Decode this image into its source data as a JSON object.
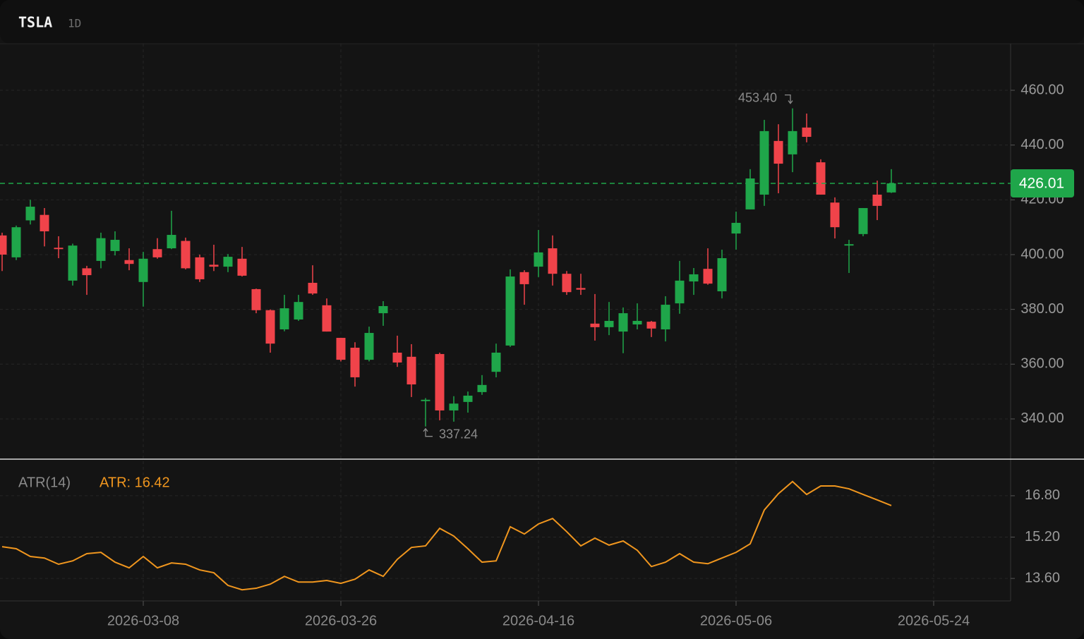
{
  "chart_data": [
    {
      "type": "candlestick",
      "title": "TSLA",
      "subtitle": "1D",
      "categories": [
        null,
        null,
        null,
        null,
        null,
        null,
        null,
        null,
        null,
        null,
        "2026-03-08",
        null,
        null,
        null,
        null,
        null,
        null,
        null,
        null,
        null,
        null,
        null,
        null,
        null,
        "2026-03-26",
        null,
        null,
        null,
        null,
        null,
        null,
        null,
        null,
        null,
        null,
        null,
        null,
        null,
        "2026-04-16",
        null,
        null,
        null,
        null,
        null,
        null,
        null,
        null,
        null,
        null,
        null,
        null,
        null,
        "2026-05-06",
        null,
        null,
        null,
        null,
        null,
        null,
        null,
        null,
        null,
        null,
        null,
        null,
        null,
        "2026-05-24"
      ],
      "open": [
        407,
        399,
        412.5,
        414.5,
        402.5,
        390.5,
        395,
        397.7,
        401.3,
        398,
        390,
        402,
        402.3,
        405,
        399,
        396.3,
        395.6,
        398.5,
        387.4,
        379.7,
        372.7,
        376.3,
        389.7,
        381.5,
        369.6,
        366,
        361.6,
        378.6,
        364.2,
        362.7,
        346.5,
        363.7,
        343.1,
        346.2,
        349.8,
        357.2,
        366.8,
        393.6,
        395.6,
        402.3,
        393,
        387.8,
        374.8,
        373.5,
        371.9,
        374.5,
        375.5,
        372.7,
        382.2,
        390.2,
        394.8,
        386.6,
        407.7,
        416.5,
        421.9,
        441.5,
        436.6,
        446.4,
        433.7,
        419,
        403.3,
        407.5,
        421.9,
        422.7,
        null,
        null,
        null
      ],
      "high": [
        408,
        410.6,
        420,
        417,
        406.7,
        404,
        395.9,
        408,
        408.5,
        402.3,
        401,
        406,
        416,
        406.2,
        400,
        403.6,
        400.2,
        402.8,
        387.6,
        380,
        385.3,
        385.3,
        396.1,
        384,
        369.6,
        368,
        373.7,
        383,
        370.4,
        367.3,
        347.6,
        364.2,
        348.3,
        350,
        356,
        367.5,
        394.6,
        394.3,
        409,
        407,
        394,
        393,
        385.6,
        382.7,
        380.7,
        382.2,
        375.8,
        384.8,
        397.7,
        395.1,
        402.3,
        401.8,
        415.7,
        431.2,
        449.2,
        447.6,
        453.4,
        451.5,
        434.8,
        420.9,
        405.4,
        417,
        427,
        431.2,
        null,
        null,
        null
      ],
      "low": [
        394,
        398,
        411,
        403,
        398.7,
        388.7,
        385.3,
        395,
        399.7,
        394.3,
        381,
        398.5,
        402,
        394.6,
        390,
        394,
        393.6,
        392,
        378.6,
        364.2,
        372,
        375.8,
        385.3,
        371.9,
        361,
        351.8,
        361,
        374,
        359,
        348,
        337.24,
        339.5,
        339,
        342.3,
        348.8,
        355.2,
        366.3,
        381.7,
        391.8,
        388.7,
        385.3,
        385.3,
        368.6,
        370.6,
        364,
        372.7,
        369.9,
        368.3,
        378.4,
        385.3,
        389,
        384,
        401.8,
        416.5,
        417.8,
        422.4,
        430.1,
        441,
        421.9,
        405.9,
        393.3,
        406.7,
        412.6,
        422.5,
        null,
        null,
        null
      ],
      "close": [
        400,
        410,
        417.5,
        408.5,
        402,
        403.3,
        392.5,
        406,
        405.4,
        396.6,
        398.5,
        399,
        407.2,
        395,
        391,
        395.6,
        399.2,
        392.3,
        379.7,
        367.5,
        380.4,
        382.7,
        385.8,
        371.9,
        361.6,
        355.2,
        371.4,
        381.2,
        360.6,
        352.6,
        347,
        343.1,
        345.6,
        348.5,
        352.4,
        364.2,
        392,
        389.2,
        400.8,
        393,
        386.3,
        387.2,
        373.5,
        375.8,
        378.6,
        375.8,
        373,
        381.7,
        390.5,
        392.8,
        389.4,
        398.7,
        411.6,
        427.8,
        445.1,
        433.2,
        445.1,
        443,
        421.9,
        410,
        403.8,
        417,
        417.8,
        426.01,
        null,
        null,
        null
      ],
      "up_color": "#1fa64a",
      "down_color": "#f0434a",
      "ylim": [
        325.57,
        477
      ],
      "yticks": [
        {
          "value": 340,
          "label": "340.00"
        },
        {
          "value": 360,
          "label": "360.00"
        },
        {
          "value": 380,
          "label": "380.00"
        },
        {
          "value": 400,
          "label": "400.00"
        },
        {
          "value": 420,
          "label": "420.00"
        },
        {
          "value": 440,
          "label": "440.00"
        },
        {
          "value": 460,
          "label": "460.00"
        }
      ],
      "grid": true,
      "last_price": 426.01,
      "last_price_color": "#1fa64a",
      "annotations": [
        {
          "label": "453.40",
          "value": 453.4
        },
        {
          "label": "337.24",
          "value": 337.24
        }
      ]
    },
    {
      "type": "line",
      "title": "ATR(14)",
      "legend": "ATR: 16.42",
      "color": "#f0961e",
      "values": [
        14.83,
        14.75,
        14.45,
        14.39,
        14.15,
        14.28,
        14.56,
        14.61,
        14.23,
        14.01,
        14.45,
        14.01,
        14.2,
        14.15,
        13.93,
        13.82,
        13.33,
        13.16,
        13.22,
        13.38,
        13.68,
        13.46,
        13.46,
        13.52,
        13.41,
        13.57,
        13.93,
        13.68,
        14.34,
        14.8,
        14.86,
        15.54,
        15.24,
        14.75,
        14.23,
        14.28,
        15.6,
        15.32,
        15.71,
        15.92,
        15.41,
        14.86,
        15.16,
        14.89,
        15.05,
        14.69,
        14.06,
        14.23,
        14.56,
        14.23,
        14.17,
        14.39,
        14.61,
        14.94,
        16.25,
        16.88,
        17.35,
        16.85,
        17.18,
        17.18,
        17.07,
        16.85,
        16.64,
        16.42,
        null,
        null,
        null
      ],
      "ylim": [
        12.73,
        18.19
      ],
      "yticks": [
        {
          "value": 13.6,
          "label": "13.60"
        },
        {
          "value": 15.2,
          "label": "15.20"
        },
        {
          "value": 16.8,
          "label": "16.80"
        }
      ],
      "grid": true
    }
  ]
}
